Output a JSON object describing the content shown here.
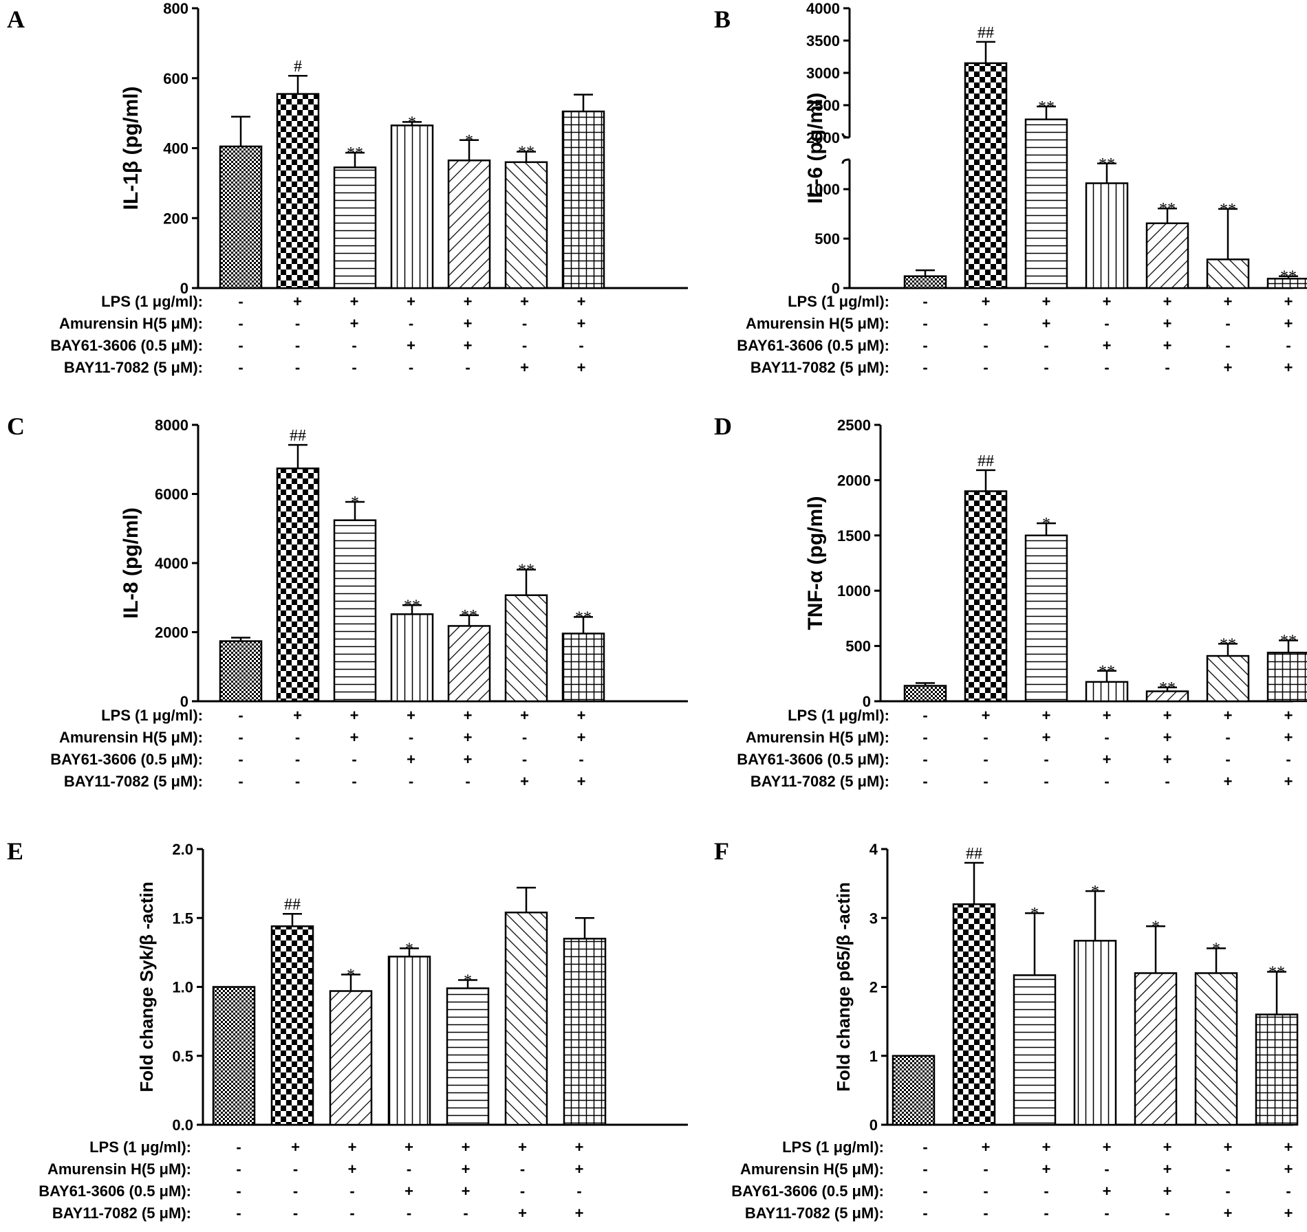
{
  "figure": {
    "conditions": {
      "labels": [
        "LPS (1 μg/ml):",
        "Amurensin H(5 μM):",
        "BAY61-3606 (0.5 μM):",
        "BAY11-7082 (5 μM):"
      ],
      "marks": [
        [
          "-",
          "+",
          "+",
          "+",
          "+",
          "+",
          "+"
        ],
        [
          "-",
          "-",
          "+",
          "-",
          "+",
          "-",
          "+"
        ],
        [
          "-",
          "-",
          "-",
          "+",
          "+",
          "-",
          "-"
        ],
        [
          "-",
          "-",
          "-",
          "-",
          "-",
          "+",
          "+"
        ]
      ]
    },
    "colors": {
      "ink": "#000000",
      "bar_fill": "#ffffff"
    }
  },
  "chart_data": [
    {
      "panel": "A",
      "type": "bar",
      "ylabel": "IL-1β (pg/ml)",
      "ylim": [
        0,
        800
      ],
      "yticks": [
        "0",
        "200",
        "400",
        "600",
        "800"
      ],
      "values": [
        405,
        555,
        345,
        465,
        365,
        360,
        505
      ],
      "errors": [
        85,
        52,
        42,
        10,
        58,
        30,
        48
      ],
      "significance": [
        "",
        "#",
        "**",
        "*",
        "*",
        "**",
        ""
      ],
      "patterns": [
        "fine",
        "checker",
        "hlines",
        "vlines",
        "diag",
        "antidiag",
        "grid"
      ]
    },
    {
      "panel": "B",
      "type": "bar",
      "ylabel": "IL-6 (pg/ml)",
      "ylim": [
        0,
        4000
      ],
      "axis_break": [
        1300,
        2000
      ],
      "yticks": [
        "0",
        "500",
        "1000",
        "2000",
        "2500",
        "3000",
        "3500",
        "4000"
      ],
      "values": [
        120,
        3150,
        2280,
        1060,
        655,
        290,
        95
      ],
      "errors": [
        60,
        330,
        200,
        200,
        150,
        510,
        25
      ],
      "significance": [
        "",
        "##",
        "**",
        "**",
        "**",
        "**",
        "**"
      ],
      "patterns": [
        "fine",
        "checker",
        "hlines",
        "vlines",
        "diag",
        "antidiag",
        "grid"
      ]
    },
    {
      "panel": "C",
      "type": "bar",
      "ylabel": "IL-8 (pg/ml)",
      "ylim": [
        0,
        8000
      ],
      "yticks": [
        "0",
        "2000",
        "4000",
        "6000",
        "8000"
      ],
      "values": [
        1740,
        6740,
        5240,
        2520,
        2180,
        3070,
        1960
      ],
      "errors": [
        100,
        680,
        530,
        260,
        310,
        740,
        480
      ],
      "significance": [
        "",
        "##",
        "*",
        "**",
        "**",
        "**",
        "**"
      ],
      "patterns": [
        "fine",
        "checker",
        "hlines",
        "vlines",
        "diag",
        "antidiag",
        "grid"
      ]
    },
    {
      "panel": "D",
      "type": "bar",
      "ylabel": "TNF-α (pg/ml)",
      "ylim": [
        0,
        2500
      ],
      "yticks": [
        "0",
        "500",
        "1000",
        "1500",
        "2000",
        "2500"
      ],
      "values": [
        140,
        1900,
        1500,
        175,
        90,
        410,
        440
      ],
      "errors": [
        25,
        190,
        110,
        100,
        35,
        110,
        110
      ],
      "significance": [
        "",
        "##",
        "*",
        "**",
        "**",
        "**",
        "**"
      ],
      "patterns": [
        "fine",
        "checker",
        "hlines",
        "vlines",
        "diag",
        "antidiag",
        "grid"
      ]
    },
    {
      "panel": "E",
      "type": "bar",
      "ylabel": "Fold change Syk/β -actin",
      "ylim": [
        0,
        2.0
      ],
      "yticks": [
        "0.0",
        "0.5",
        "1.0",
        "1.5",
        "2.0"
      ],
      "values": [
        1.0,
        1.44,
        0.97,
        1.22,
        0.99,
        1.54,
        1.35
      ],
      "errors": [
        0,
        0.09,
        0.12,
        0.06,
        0.06,
        0.18,
        0.15
      ],
      "significance": [
        "",
        "##",
        "*",
        "*",
        "*",
        "",
        ""
      ],
      "patterns": [
        "fine",
        "checker",
        "diag",
        "vlines",
        "hlines",
        "antidiag",
        "grid"
      ]
    },
    {
      "panel": "F",
      "type": "bar",
      "ylabel": "Fold change p65/β -actin",
      "ylim": [
        0,
        4
      ],
      "yticks": [
        "0",
        "1",
        "2",
        "3",
        "4"
      ],
      "values": [
        1.0,
        3.2,
        2.17,
        2.67,
        2.2,
        2.2,
        1.6
      ],
      "errors": [
        0,
        0.6,
        0.9,
        0.72,
        0.68,
        0.36,
        0.62
      ],
      "significance": [
        "",
        "##",
        "*",
        "*",
        "*",
        "*",
        "**"
      ],
      "patterns": [
        "fine",
        "checker",
        "hlines",
        "vlines",
        "diag",
        "antidiag",
        "grid"
      ]
    }
  ]
}
